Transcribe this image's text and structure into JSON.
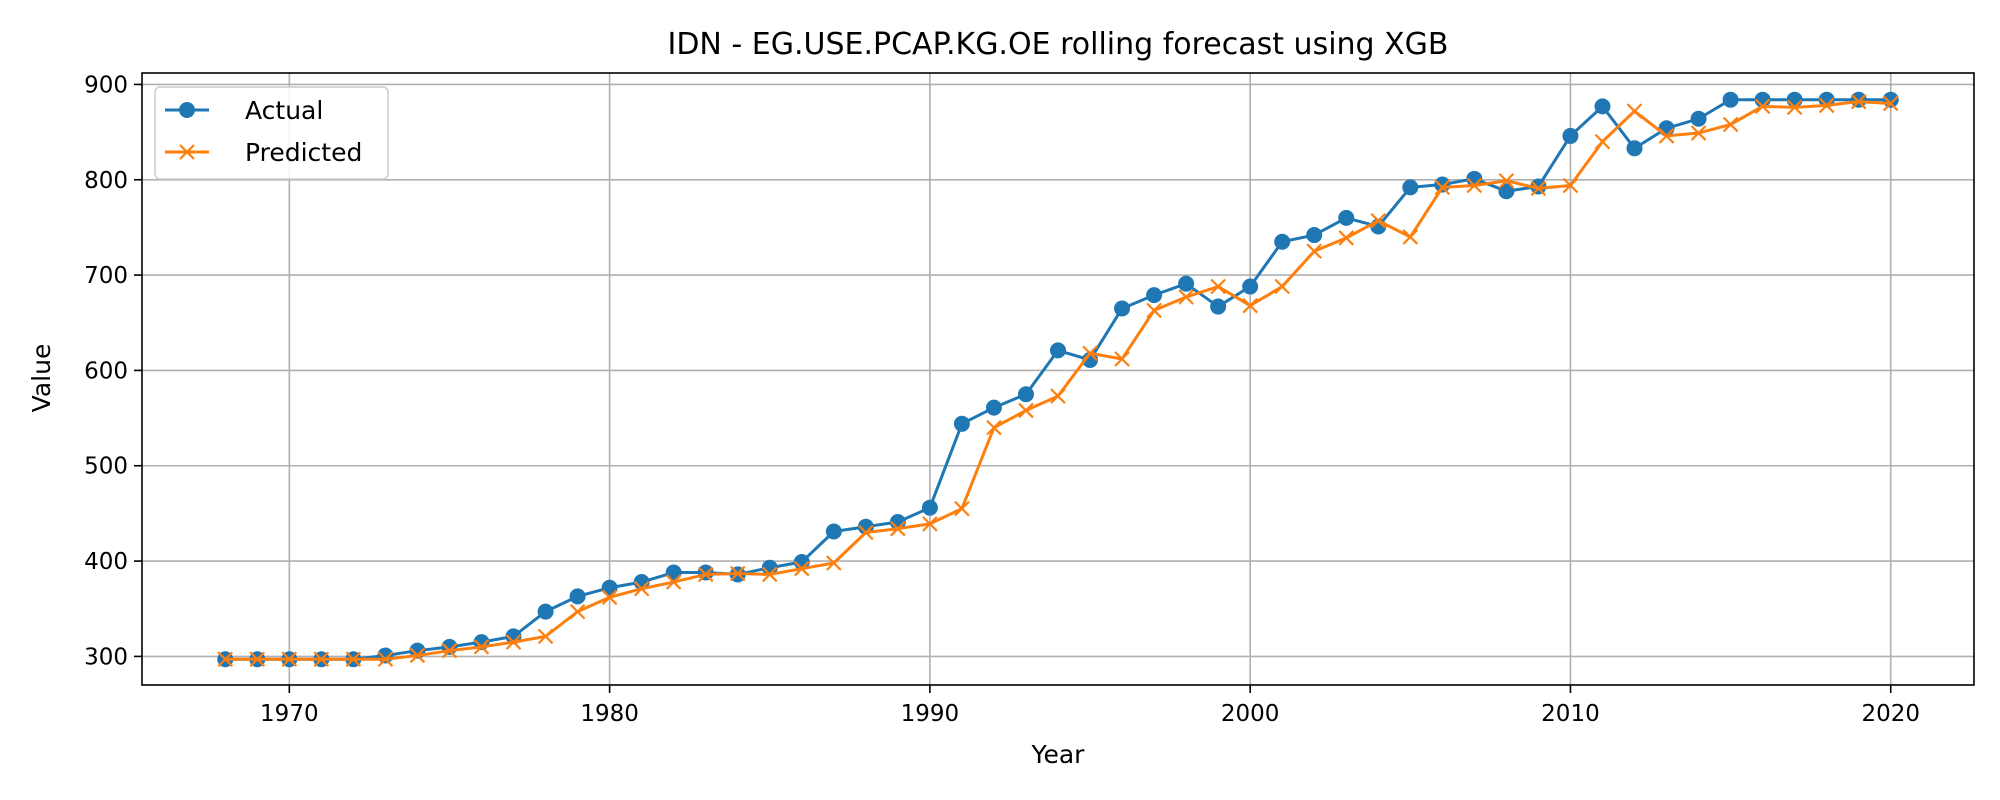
{
  "chart_data": {
    "type": "line",
    "title": "IDN - EG.USE.PCAP.KG.OE rolling forecast using XGB",
    "xlabel": "Year",
    "ylabel": "Value",
    "xlim": [
      1965.4,
      2022.6
    ],
    "ylim": [
      270,
      912
    ],
    "x_ticks": [
      1970,
      1980,
      1990,
      2000,
      2010,
      2020
    ],
    "y_ticks": [
      300,
      400,
      500,
      600,
      700,
      800,
      900
    ],
    "grid": true,
    "legend_position": "top-left",
    "x": [
      1968,
      1969,
      1970,
      1971,
      1972,
      1973,
      1974,
      1975,
      1976,
      1977,
      1978,
      1979,
      1980,
      1981,
      1982,
      1983,
      1984,
      1985,
      1986,
      1987,
      1988,
      1989,
      1990,
      1991,
      1992,
      1993,
      1994,
      1995,
      1996,
      1997,
      1998,
      1999,
      2000,
      2001,
      2002,
      2003,
      2004,
      2005,
      2006,
      2007,
      2008,
      2009,
      2010,
      2011,
      2012,
      2013,
      2014,
      2015,
      2016,
      2017,
      2018,
      2019,
      2020
    ],
    "series": [
      {
        "name": "Actual",
        "color": "#1f77b4",
        "marker": "circle",
        "values": [
          297,
          297,
          297,
          297,
          297,
          301,
          306,
          310,
          315,
          321,
          347,
          363,
          372,
          378,
          388,
          388,
          386,
          393,
          399,
          431,
          436,
          441,
          456,
          544,
          561,
          575,
          621,
          611,
          665,
          679,
          691,
          667,
          688,
          735,
          742,
          760,
          751,
          792,
          795,
          801,
          788,
          793,
          846,
          877,
          833,
          854,
          864,
          884,
          884,
          884,
          884,
          884,
          884
        ]
      },
      {
        "name": "Predicted",
        "color": "#ff7f0e",
        "marker": "x",
        "values": [
          297,
          297,
          297,
          297,
          297,
          297,
          301,
          306,
          310,
          315,
          321,
          347,
          362,
          371,
          378,
          386,
          387,
          386,
          392,
          398,
          430,
          434,
          439,
          455,
          540,
          558,
          573,
          618,
          612,
          663,
          677,
          688,
          668,
          688,
          725,
          739,
          757,
          740,
          792,
          794,
          799,
          791,
          794,
          840,
          872,
          846,
          849,
          858,
          877,
          876,
          878,
          882,
          880
        ]
      }
    ]
  }
}
